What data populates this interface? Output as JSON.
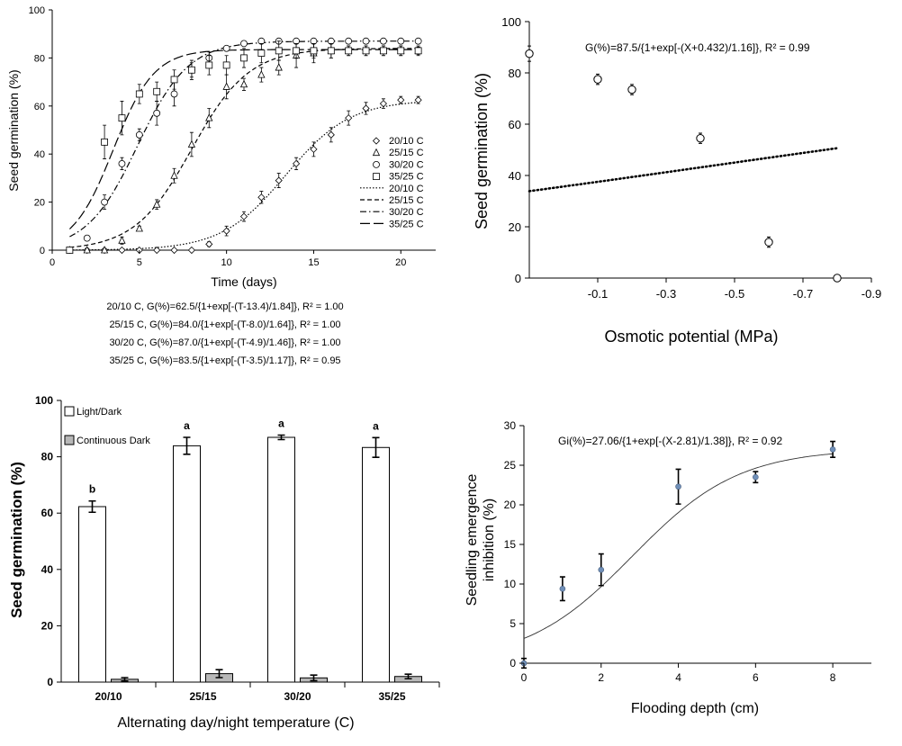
{
  "chart_data": [
    {
      "type": "line",
      "xlabel": "Time (days)",
      "ylabel": "Seed germination (%)",
      "xlim": [
        0,
        22
      ],
      "ylim": [
        0,
        100
      ],
      "xticks": [
        "0",
        "5",
        "10",
        "15",
        "20"
      ],
      "yticks": [
        "0",
        "20",
        "40",
        "60",
        "80",
        "100"
      ],
      "legend": {
        "position": "right-middle",
        "markers": [
          "20/10 C",
          "25/15 C",
          "30/20 C",
          "35/25 C"
        ],
        "lines": [
          "20/10 C",
          "25/15 C",
          "30/20 C",
          "35/25 C"
        ]
      },
      "equations": [
        "20/10 C, G(%)=62.5/{1+exp[-(T-13.4)/1.84]}, R² = 1.00",
        "25/15 C, G(%)=84.0/{1+exp[-(T-8.0)/1.64]}, R² = 1.00",
        "30/20 C, G(%)=87.0/{1+exp[-(T-4.9)/1.46]}, R² = 1.00",
        "35/25 C, G(%)=83.5/{1+exp[-(T-3.5)/1.17]}, R²  = 0.95"
      ],
      "series": [
        {
          "name": "20/10 C",
          "marker": "diamond",
          "dash": "dotted",
          "gmax": 62.5,
          "t50": 13.4,
          "b": 1.84,
          "x": [
            1,
            2,
            3,
            4,
            5,
            6,
            7,
            8,
            9,
            10,
            11,
            12,
            13,
            14,
            15,
            16,
            17,
            18,
            19,
            20,
            21
          ],
          "y": [
            0,
            0,
            0,
            0,
            0,
            0,
            0,
            0,
            2.5,
            8,
            14,
            22,
            29,
            36,
            42,
            48,
            55,
            59,
            61,
            62.5,
            62.5
          ],
          "err": [
            0,
            0,
            0,
            0,
            0,
            0,
            0,
            0,
            1,
            2,
            2,
            2.5,
            3,
            2.5,
            3,
            3,
            3,
            2.5,
            2,
            1.5,
            1.5
          ]
        },
        {
          "name": "25/15 C",
          "marker": "triangle",
          "dash": "dashed",
          "gmax": 84.0,
          "t50": 8.0,
          "b": 1.64,
          "x": [
            1,
            2,
            3,
            4,
            5,
            6,
            7,
            8,
            9,
            10,
            11,
            12,
            13,
            14,
            15,
            16,
            17,
            18,
            19,
            20,
            21
          ],
          "y": [
            0,
            0,
            0,
            4,
            9,
            19,
            31,
            44,
            55,
            68,
            69,
            73,
            76,
            81,
            82,
            83,
            83,
            83,
            83,
            83,
            83
          ],
          "err": [
            0,
            0,
            0,
            1.5,
            1,
            2,
            3,
            5,
            4,
            5,
            2.5,
            3,
            3,
            5,
            4,
            3,
            2,
            2,
            2,
            2,
            1.5
          ]
        },
        {
          "name": "30/20 C",
          "marker": "circle",
          "dash": "dashdot",
          "gmax": 87.0,
          "t50": 4.9,
          "b": 1.46,
          "x": [
            1,
            2,
            3,
            4,
            5,
            6,
            7,
            8,
            9,
            10,
            11,
            12,
            13,
            14,
            15,
            16,
            17,
            18,
            19,
            20,
            21
          ],
          "y": [
            0,
            5,
            20,
            36,
            48,
            57,
            65,
            75,
            80,
            84,
            86,
            87,
            87,
            87,
            87,
            87,
            87,
            87,
            87,
            87,
            87
          ],
          "err": [
            0,
            1,
            3,
            2.5,
            2.5,
            5,
            5,
            3,
            2.5,
            1,
            1,
            1,
            1,
            1,
            1,
            1,
            1,
            1,
            1,
            1,
            1
          ]
        },
        {
          "name": "35/25 C",
          "marker": "square",
          "dash": "longdash",
          "gmax": 83.5,
          "t50": 3.5,
          "b": 1.17,
          "x": [
            1,
            3,
            4,
            5,
            6,
            7,
            8,
            9,
            10,
            11,
            12,
            13,
            14,
            15,
            16,
            17,
            18,
            19,
            20,
            21
          ],
          "y": [
            0,
            45,
            55,
            65,
            66,
            71,
            75,
            77,
            77,
            80,
            82,
            83,
            83,
            83,
            83,
            83,
            83,
            83,
            83,
            83
          ],
          "err": [
            0,
            7,
            7,
            4,
            4,
            4,
            4,
            4,
            4,
            4,
            4,
            4,
            3,
            3,
            3,
            2,
            2,
            2,
            2,
            2
          ]
        }
      ]
    },
    {
      "type": "scatter",
      "xlabel": "Osmotic potential (MPa)",
      "ylabel": "Seed germination (%)",
      "equation": "G(%)=87.5/{1+exp[-(X+0.432)/1.16]}, R² = 0.99",
      "xlim": [
        0.1,
        -0.9
      ],
      "ylim": [
        0,
        100
      ],
      "xticks": [
        "-0.1",
        "-0.3",
        "-0.5",
        "-0.7",
        "-0.9"
      ],
      "yticks": [
        "0",
        "20",
        "40",
        "60",
        "80",
        "100"
      ],
      "fit": {
        "gmax": 87.5,
        "x50": -0.432,
        "b": 1.16,
        "from": 0.1,
        "to": -0.8
      },
      "x": [
        0.1,
        -0.1,
        -0.2,
        -0.4,
        -0.6,
        -0.8
      ],
      "y": [
        87.5,
        77.5,
        73.5,
        54.5,
        14,
        0
      ],
      "err": [
        3,
        2,
        2,
        2,
        2,
        0
      ]
    },
    {
      "type": "bar",
      "xlabel": "Alternating day/night temperature (C)",
      "ylabel": "Seed germination   (%)",
      "categories": [
        "20/10",
        "25/15",
        "30/20",
        "35/25"
      ],
      "ylim": [
        0,
        100
      ],
      "yticks": [
        "0",
        "20",
        "40",
        "60",
        "80",
        "100"
      ],
      "letters": [
        "b",
        "a",
        "a",
        "a"
      ],
      "legend": {
        "position": "top-left"
      },
      "series": [
        {
          "name": "Light/Dark",
          "color": "#ffffff",
          "values": [
            62.3,
            83.9,
            86.9,
            83.3
          ],
          "err": [
            2.0,
            3.0,
            0.8,
            3.5
          ]
        },
        {
          "name": "Continuous Dark",
          "color": "#b8b8b8",
          "values": [
            1.0,
            3.0,
            1.5,
            2.0
          ],
          "err": [
            0.6,
            1.4,
            1.0,
            0.8
          ]
        }
      ]
    },
    {
      "type": "scatter",
      "xlabel": "Flooding depth (cm)",
      "ylabel": "Seedling emergence inhibition (%)",
      "ylabel_lines": [
        "Seedling emergence",
        "inhibition (%)"
      ],
      "equation": "Gi(%)=27.06/{1+exp[-(X-2.81)/1.38]}, R² = 0.92",
      "xlim": [
        0,
        9
      ],
      "ylim": [
        0,
        30
      ],
      "xticks": [
        "0",
        "2",
        "4",
        "6",
        "8"
      ],
      "yticks": [
        "0",
        "5",
        "10",
        "15",
        "20",
        "25",
        "30"
      ],
      "fit": {
        "gmax": 27.06,
        "x50": 2.81,
        "b": 1.38,
        "from": 0,
        "to": 8
      },
      "point_color": "#6f8fb8",
      "x": [
        0,
        1,
        2,
        4,
        6,
        8
      ],
      "y": [
        0,
        9.4,
        11.8,
        22.3,
        23.5,
        27.0
      ],
      "err": [
        0.6,
        1.5,
        2.0,
        2.2,
        0.7,
        1.0
      ]
    }
  ]
}
